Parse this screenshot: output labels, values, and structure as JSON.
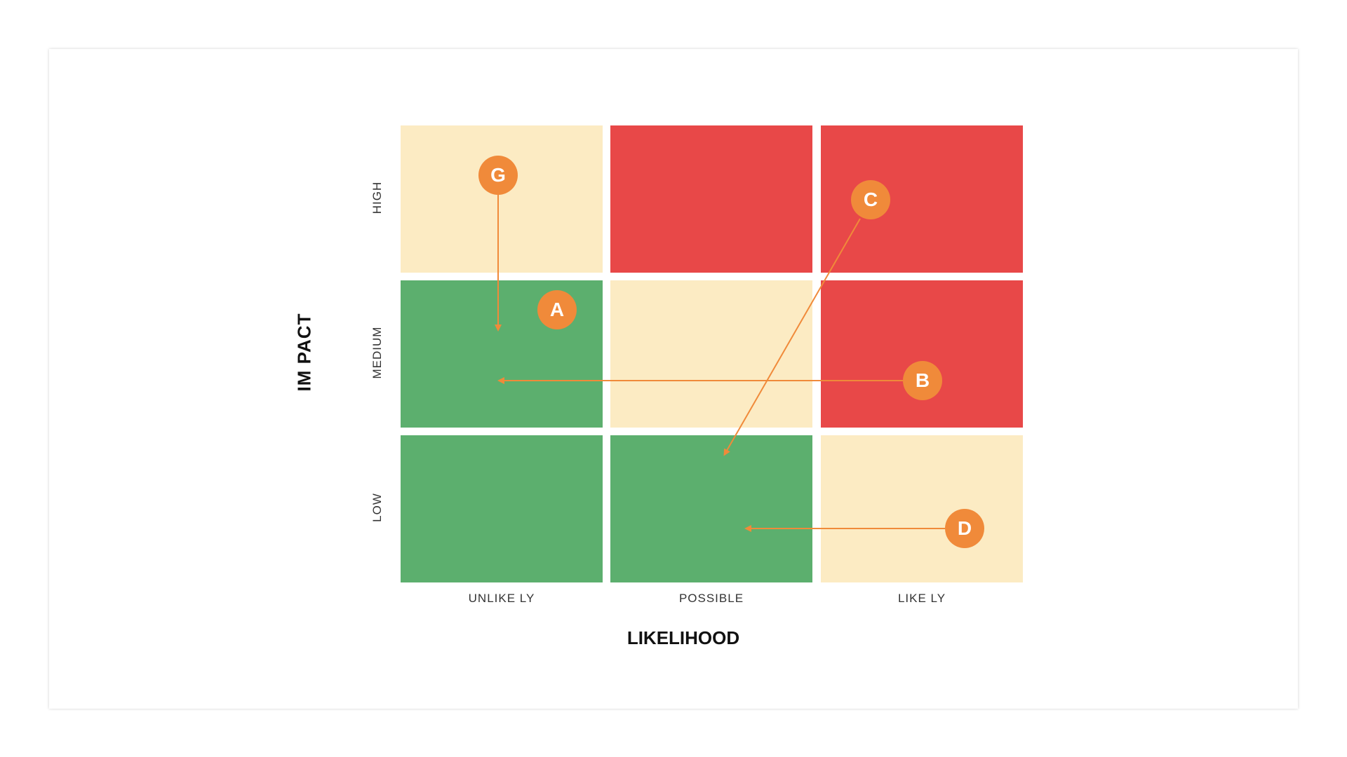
{
  "matrix": {
    "y_axis_title": "IM PACT",
    "x_axis_title": "LIKELIHOOD",
    "rows": [
      "HIGH",
      "MEDIUM",
      "LOW"
    ],
    "columns": [
      "UNLIKE LY",
      "POSSIBLE",
      "LIKE LY"
    ],
    "colors": {
      "low": "#5caf6e",
      "medium": "#fcebc3",
      "high": "#e84848",
      "marker": "#f08a3a",
      "arrow": "#f08a3a"
    },
    "cells": [
      [
        "medium",
        "high",
        "high"
      ],
      [
        "low",
        "medium",
        "high"
      ],
      [
        "low",
        "low",
        "medium"
      ]
    ]
  },
  "risks": [
    {
      "id": "G",
      "from": {
        "likelihood": "UNLIKE LY",
        "impact": "HIGH"
      },
      "to": {
        "likelihood": "UNLIKE LY",
        "impact": "MEDIUM"
      }
    },
    {
      "id": "A",
      "from": {
        "likelihood": "UNLIKE LY",
        "impact": "MEDIUM"
      },
      "to": null
    },
    {
      "id": "C",
      "from": {
        "likelihood": "LIKE LY",
        "impact": "HIGH"
      },
      "to": {
        "likelihood": "POSSIBLE",
        "impact": "LOW"
      }
    },
    {
      "id": "B",
      "from": {
        "likelihood": "LIKE LY",
        "impact": "MEDIUM"
      },
      "to": {
        "likelihood": "UNLIKE LY",
        "impact": "MEDIUM"
      }
    },
    {
      "id": "D",
      "from": {
        "likelihood": "LIKE LY",
        "impact": "LOW"
      },
      "to": {
        "likelihood": "POSSIBLE",
        "impact": "LOW"
      }
    }
  ]
}
